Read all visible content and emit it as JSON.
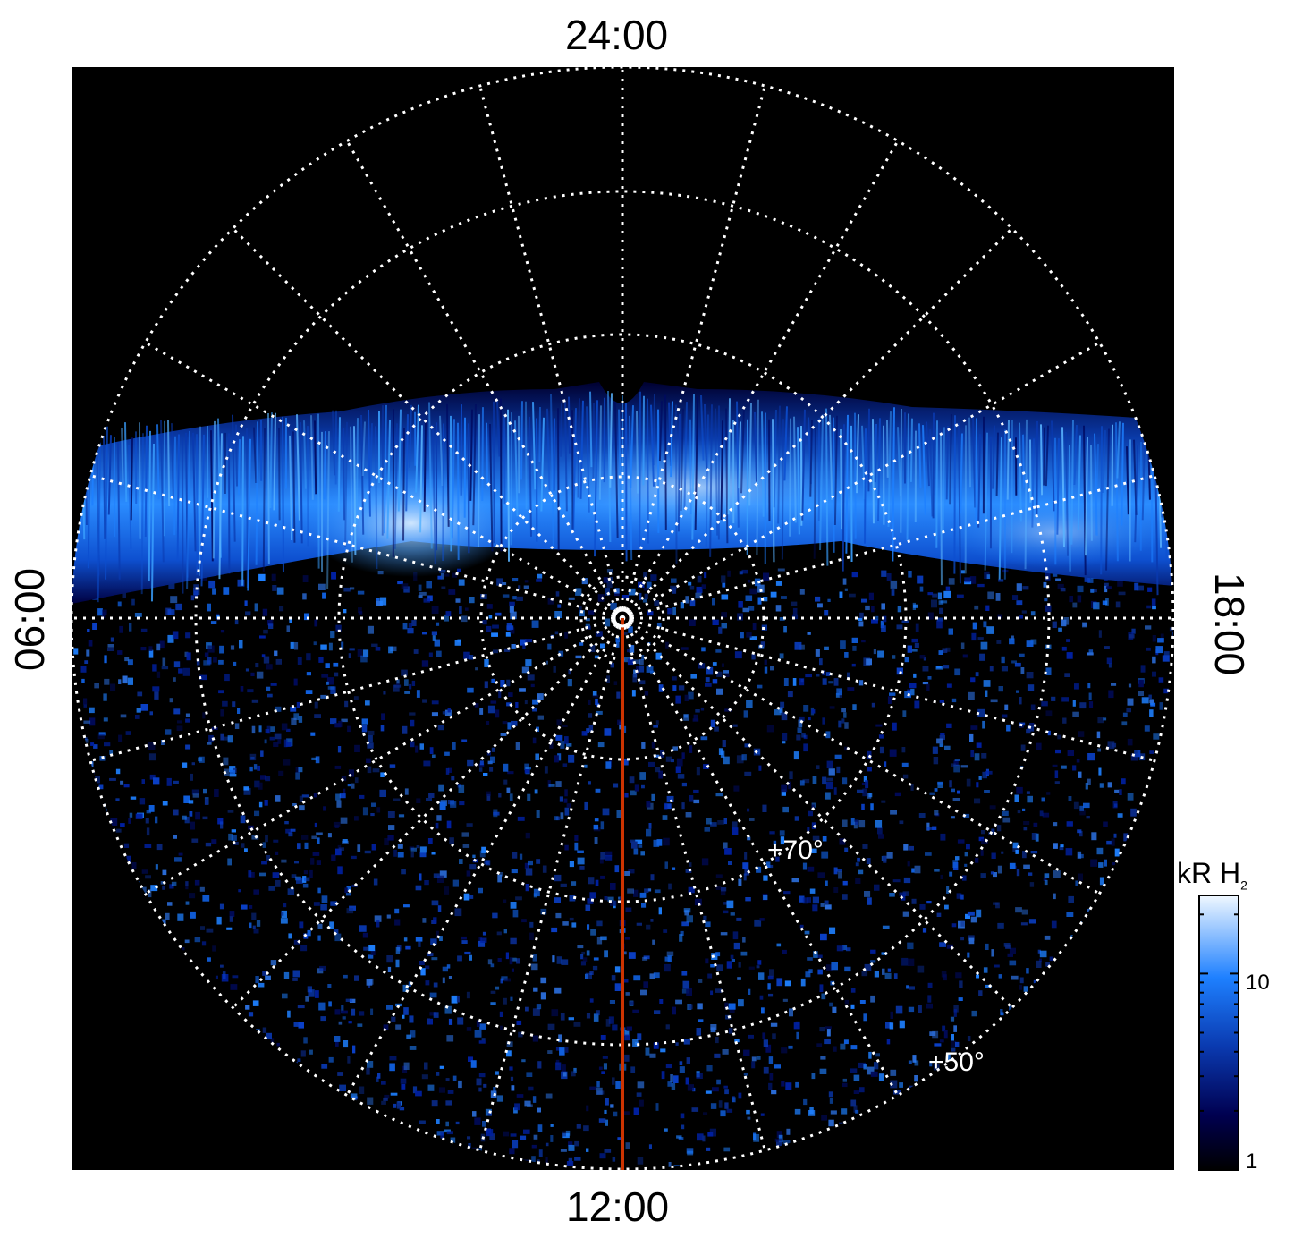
{
  "map": {
    "label_top": "24:00",
    "label_bottom": "12:00",
    "label_left": "06:00",
    "label_right": "18:00",
    "latitude_labels": [
      "+70°",
      "+50°"
    ],
    "colors": {
      "background": "#000000",
      "grid": "#ffffff",
      "noon_meridian": "#cc3300",
      "aurora_low": "#000050",
      "aurora_mid": "#1e80ff",
      "aurora_high": "#e8f4ff"
    }
  },
  "colorbar": {
    "title": "kR H",
    "title_subscript": "2",
    "tick_labels": [
      "1",
      "10"
    ],
    "scale": "log",
    "range": [
      1,
      25
    ]
  }
}
